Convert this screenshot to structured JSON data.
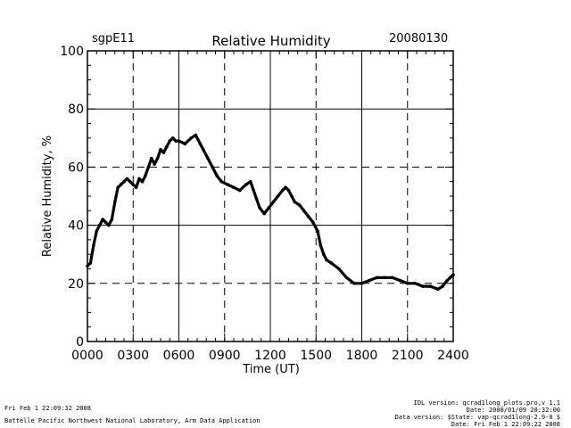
{
  "header": {
    "site": "sgpE11",
    "date": "20080130"
  },
  "footer": {
    "left_line1": "Fri Feb  1 22:09:32 2008",
    "left_line2": "Battelle Pacific Northwest National Laboratory, Arm Data Application",
    "right_lines": [
      "IDL version: qcrad1long_plots.pro,v 1.1",
      "Date: 2008/01/09 20:32:00",
      "Data version: $State: vap-qcrad1long-2.9-0 $",
      "Date: Fri Feb  1 22:09:22 2008"
    ]
  },
  "chart_data": {
    "type": "line",
    "title": "Relative Humidity",
    "xlabel": "Time (UT)",
    "ylabel": "Relative Humidity, %",
    "xlim": [
      0,
      2400
    ],
    "ylim": [
      0,
      100
    ],
    "x_ticks": [
      0,
      300,
      600,
      900,
      1200,
      1500,
      1800,
      2100,
      2400
    ],
    "x_tick_labels": [
      "0000",
      "0300",
      "0600",
      "0900",
      "1200",
      "1500",
      "1800",
      "2100",
      "2400"
    ],
    "y_ticks": [
      0,
      20,
      40,
      60,
      80,
      100
    ],
    "y_tick_labels": [
      "0",
      "20",
      "40",
      "60",
      "80",
      "100"
    ],
    "grid": true,
    "series": [
      {
        "name": "Relative Humidity",
        "x": [
          0,
          20,
          40,
          60,
          80,
          100,
          120,
          140,
          160,
          180,
          200,
          220,
          240,
          260,
          280,
          300,
          320,
          340,
          360,
          380,
          400,
          420,
          440,
          460,
          480,
          500,
          520,
          540,
          560,
          580,
          600,
          640,
          680,
          710,
          740,
          760,
          790,
          820,
          850,
          880,
          920,
          960,
          1000,
          1040,
          1070,
          1090,
          1110,
          1130,
          1160,
          1190,
          1220,
          1250,
          1280,
          1300,
          1320,
          1340,
          1360,
          1390,
          1420,
          1450,
          1480,
          1510,
          1530,
          1550,
          1570,
          1600,
          1650,
          1700,
          1750,
          1800,
          1850,
          1900,
          1950,
          2000,
          2050,
          2100,
          2150,
          2200,
          2250,
          2300,
          2330,
          2360,
          2380,
          2400
        ],
        "y": [
          26,
          27,
          33,
          38,
          40,
          42,
          41,
          40,
          42,
          48,
          53,
          54,
          55,
          56,
          55,
          54,
          53,
          56,
          55,
          57,
          60,
          63,
          61,
          63,
          66,
          65,
          67,
          69,
          70,
          69,
          69,
          68,
          70,
          71,
          68,
          66,
          63,
          60,
          57,
          55,
          54,
          53,
          52,
          54,
          55,
          52,
          49,
          46,
          44,
          46,
          48,
          50,
          52,
          53,
          52,
          50,
          48,
          47,
          45,
          43,
          41,
          38,
          33,
          30,
          28,
          27,
          25,
          22,
          20,
          20,
          21,
          22,
          22,
          22,
          21,
          20,
          20,
          19,
          19,
          18,
          19,
          21,
          22,
          23
        ]
      }
    ]
  }
}
